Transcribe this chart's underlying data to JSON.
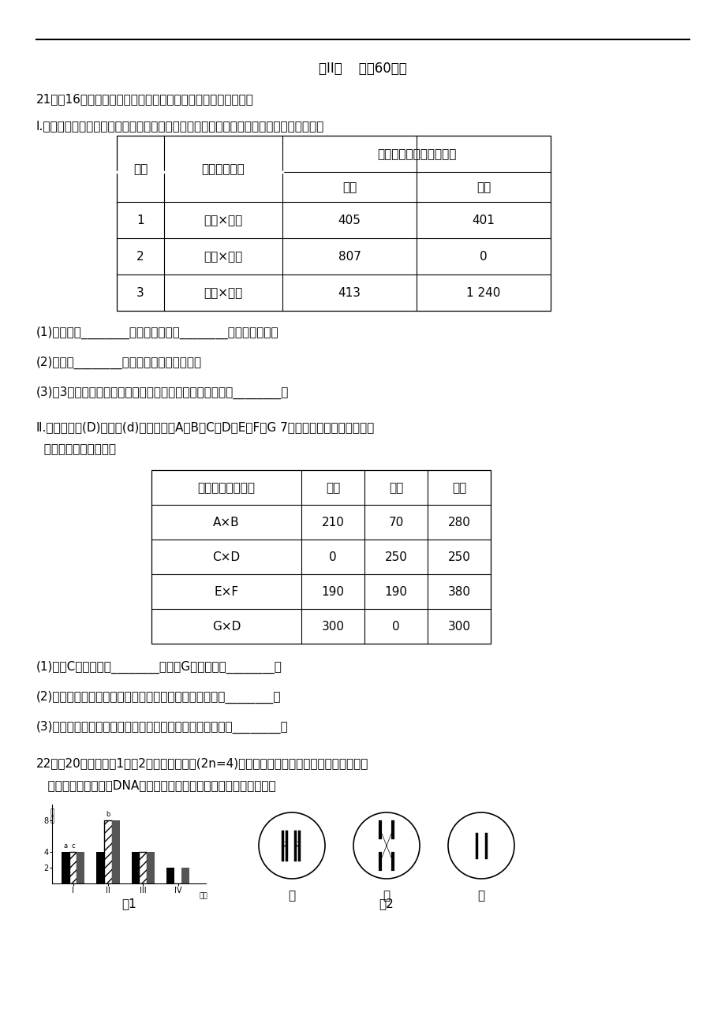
{
  "bg_color": "#ffffff",
  "header": "第II卷    （全60分）",
  "q21_title": "21、（16分）豆豆是良好的遗传实验材料，回答下列相关问题：",
  "roman1_text": "Ⅰ.豆豆的花色由一对遗传因子控制，下表是豆豆的花色三个组合的遗传实验结果。请回答：",
  "table1_col0": "组合",
  "table1_col1": "亲本表现性状",
  "table1_col23": "子代表现性状和植株数目",
  "table1_sub2": "白花",
  "table1_sub3": "紫花",
  "table1_rows": [
    [
      "1",
      "紫花×白花",
      "405",
      "401"
    ],
    [
      "2",
      "白花×白花",
      "807",
      "0"
    ],
    [
      "3",
      "紫花×紫花",
      "413",
      "1 240"
    ]
  ],
  "q21_1": "(1)由表中第________个组合实验可知________花为显性性状。",
  "q21_2": "(2)表中第________个组合实验为测交实验。",
  "q21_3": "(3)第3个组合中，子代的所有个体中，纯合子所占的比例是________。",
  "roman2_line1": "Ⅱ.豆豆的高茎(D)对矮茎(d)为显性，将A、B、C、D、E、F、G 7种豆豆进行杂交，实验结果",
  "roman2_line2": "  如下表。请分析说明：",
  "table2_header": [
    "杂交后代实验组合",
    "高茎",
    "矮茎",
    "总数"
  ],
  "table2_rows": [
    [
      "A×B",
      "210",
      "70",
      "280"
    ],
    [
      "C×D",
      "0",
      "250",
      "250"
    ],
    [
      "E×F",
      "190",
      "190",
      "380"
    ],
    [
      "G×D",
      "300",
      "0",
      "300"
    ]
  ],
  "q21_4": "(1)豆豆C的基因型是________，豆豆G的基因型是________。",
  "q21_5": "(2)上述实验结枞所获得的高茎纯合子植株占高茎植株数的________。",
  "q21_6": "(3)所得总株数中，性状能稳定遗传和不能稳定遗传的比例为________。",
  "q22_line1": "22、（20分）下列图1和图2分别表示某动物(2n=4)体内细胞正常分裂过程中不同时期细胞内",
  "q22_line2": "   染色体、染色单体和DNA含量的关系及细胞分裂图像，请分析回答：",
  "fig1_label": "图1",
  "fig2_label": "图2",
  "cell_labels": [
    "甲",
    "乙",
    "丙"
  ],
  "ylabel_fig1": "数\n量",
  "periods": [
    "I",
    "II",
    "III",
    "IV",
    "时期"
  ],
  "bar_a_label": "a",
  "bar_b_label": "b",
  "bar_c_label": "c"
}
